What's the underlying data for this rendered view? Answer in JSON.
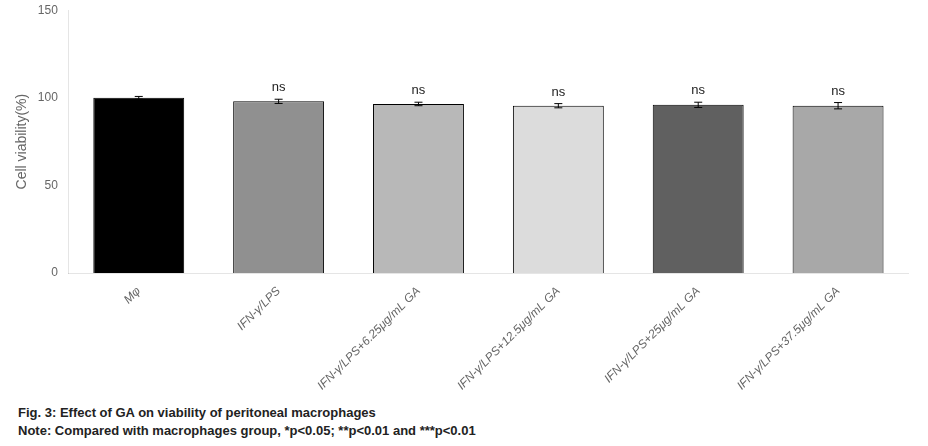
{
  "chart_data": {
    "type": "bar",
    "categories": [
      "Mφ",
      "IFN-γ/LPS",
      "IFN-γ/LPS+6.25μg/mL GA",
      "IFN-γ/LPS+12.5μg/mL GA",
      "IFN-γ/LPS+25μg/mL GA",
      "IFN-γ/LPS+37.5μg/mL GA"
    ],
    "values": [
      100.0,
      98.0,
      96.5,
      95.5,
      96.0,
      95.5
    ],
    "errors": [
      0.8,
      1.2,
      1.0,
      1.2,
      1.5,
      1.8
    ],
    "colors": [
      "#000000",
      "#909090",
      "#b8b8b8",
      "#dcdcdc",
      "#606060",
      "#a8a8a8"
    ],
    "ylabel": "Cell viability(%)",
    "ylim": [
      0,
      150
    ],
    "yticks": [
      0,
      50,
      100,
      150
    ],
    "significance": [
      null,
      "ns",
      "ns",
      "ns",
      "ns",
      "ns"
    ],
    "captions": [
      "Fig. 3: Effect of GA on viability of peritoneal macrophages",
      "Note: Compared with macrophages group, *p<0.05; **p<0.01 and ***p<0.01"
    ],
    "grid": false
  }
}
